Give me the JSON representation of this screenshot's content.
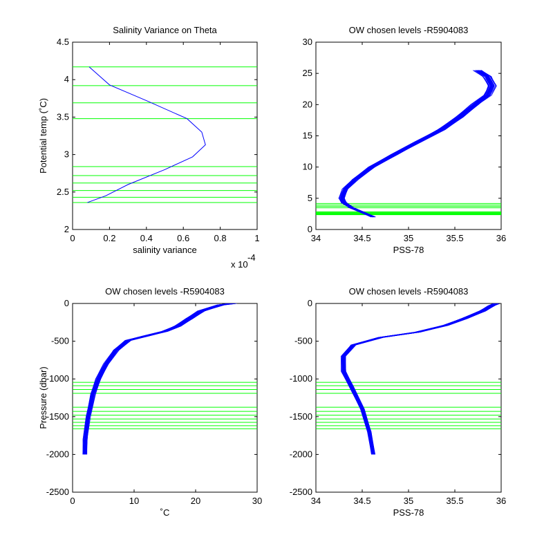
{
  "figure": {
    "background": "#ffffff",
    "line_color": "#0000ff",
    "level_color": "#00ff00"
  },
  "chart_data": [
    {
      "type": "line",
      "title": "Salinity Variance on Theta",
      "xlabel": "salinity variance",
      "ylabel": "Potential temp (˚C)",
      "x_multiplier": "x 10",
      "x_multiplier_exp": "-4",
      "xlim": [
        0,
        1
      ],
      "ylim": [
        2,
        4.5
      ],
      "xticks": [
        0,
        0.2,
        0.4,
        0.6,
        0.8,
        1
      ],
      "xtick_labels": [
        "0",
        "0.2",
        "0.4",
        "0.6",
        "0.8",
        "1"
      ],
      "yticks": [
        2,
        2.5,
        3,
        3.5,
        4,
        4.5
      ],
      "ytick_labels": [
        "2",
        "2.5",
        "3",
        "3.5",
        "4",
        "4.5"
      ],
      "grid": false,
      "series": [
        {
          "color": "#0000ff",
          "points": [
            [
              0.09,
              4.17
            ],
            [
              0.2,
              3.93
            ],
            [
              0.4,
              3.72
            ],
            [
              0.62,
              3.48
            ],
            [
              0.7,
              3.3
            ],
            [
              0.72,
              3.13
            ],
            [
              0.65,
              2.97
            ],
            [
              0.5,
              2.8
            ],
            [
              0.3,
              2.6
            ],
            [
              0.18,
              2.45
            ],
            [
              0.08,
              2.36
            ]
          ]
        }
      ],
      "levels": [
        4.17,
        3.92,
        3.69,
        3.48,
        2.84,
        2.72,
        2.62,
        2.52,
        2.43,
        2.36
      ]
    },
    {
      "type": "line",
      "title": "OW chosen levels -R5904083",
      "xlabel": "PSS-78",
      "ylabel": "",
      "xlim": [
        34,
        36
      ],
      "ylim": [
        0,
        30
      ],
      "xticks": [
        34,
        34.5,
        35,
        35.5,
        36
      ],
      "xtick_labels": [
        "34",
        "34.5",
        "35",
        "35.5",
        "36"
      ],
      "yticks": [
        0,
        5,
        10,
        15,
        20,
        25,
        30
      ],
      "ytick_labels": [
        "0",
        "5",
        "10",
        "15",
        "20",
        "25",
        "30"
      ],
      "grid": false,
      "series": [
        {
          "color": "#0000ff",
          "points": [
            [
              34.62,
              2
            ],
            [
              34.5,
              2.8
            ],
            [
              34.38,
              3.5
            ],
            [
              34.3,
              4.3
            ],
            [
              34.28,
              5
            ],
            [
              34.32,
              6.5
            ],
            [
              34.42,
              8
            ],
            [
              34.6,
              10
            ],
            [
              34.85,
              12
            ],
            [
              35.1,
              14
            ],
            [
              35.35,
              16
            ],
            [
              35.55,
              18
            ],
            [
              35.72,
              20
            ],
            [
              35.85,
              21.5
            ],
            [
              35.9,
              23
            ],
            [
              35.85,
              24.5
            ],
            [
              35.75,
              25.5
            ]
          ]
        }
      ],
      "band": {
        "spread": 0.045,
        "count": 26
      },
      "levels": [
        4.17,
        3.92,
        3.69,
        3.48,
        2.84,
        2.72,
        2.62,
        2.52,
        2.43,
        2.36
      ]
    },
    {
      "type": "line",
      "title": "OW chosen levels -R5904083",
      "xlabel": "˚C",
      "ylabel": "Pressure (dbar)",
      "xlim": [
        0,
        30
      ],
      "ylim": [
        -2500,
        0
      ],
      "xticks": [
        0,
        10,
        20,
        30
      ],
      "xtick_labels": [
        "0",
        "10",
        "20",
        "30"
      ],
      "yticks": [
        -2500,
        -2000,
        -1500,
        -1000,
        -500,
        0
      ],
      "ytick_labels": [
        "-2500",
        "-2000",
        "-1500",
        "-1000",
        "-500",
        "0"
      ],
      "grid": false,
      "series": [
        {
          "color": "#0000ff",
          "points": [
            [
              2,
              -2000
            ],
            [
              2.1,
              -1800
            ],
            [
              2.5,
              -1500
            ],
            [
              3.3,
              -1200
            ],
            [
              4.2,
              -1000
            ],
            [
              5.5,
              -800
            ],
            [
              7,
              -620
            ],
            [
              9,
              -490
            ],
            [
              12,
              -430
            ],
            [
              15,
              -370
            ],
            [
              17,
              -300
            ],
            [
              19,
              -200
            ],
            [
              21,
              -100
            ],
            [
              24,
              -20
            ],
            [
              26,
              0
            ]
          ]
        }
      ],
      "band": {
        "spread": 0.6,
        "count": 26
      },
      "levels": [
        -1045,
        -1090,
        -1140,
        -1190,
        -1375,
        -1430,
        -1480,
        -1530,
        -1575,
        -1620,
        -1660
      ]
    },
    {
      "type": "line",
      "title": "OW chosen levels -R5904083",
      "xlabel": "PSS-78",
      "ylabel": "",
      "xlim": [
        34,
        36
      ],
      "ylim": [
        -2500,
        0
      ],
      "xticks": [
        34,
        34.5,
        35,
        35.5,
        36
      ],
      "xtick_labels": [
        "34",
        "34.5",
        "35",
        "35.5",
        "36"
      ],
      "yticks": [
        -2500,
        -2000,
        -1500,
        -1000,
        -500,
        0
      ],
      "ytick_labels": [
        "-2500",
        "-2000",
        "-1500",
        "-1000",
        "-500",
        "0"
      ],
      "grid": false,
      "series": [
        {
          "color": "#0000ff",
          "points": [
            [
              34.62,
              -2000
            ],
            [
              34.58,
              -1700
            ],
            [
              34.5,
              -1400
            ],
            [
              34.38,
              -1100
            ],
            [
              34.3,
              -900
            ],
            [
              34.3,
              -700
            ],
            [
              34.4,
              -550
            ],
            [
              34.7,
              -450
            ],
            [
              35.1,
              -380
            ],
            [
              35.4,
              -290
            ],
            [
              35.6,
              -200
            ],
            [
              35.8,
              -100
            ],
            [
              35.9,
              -30
            ],
            [
              35.95,
              0
            ]
          ]
        }
      ],
      "band": {
        "spread": 0.035,
        "count": 26
      },
      "levels": [
        -1045,
        -1090,
        -1140,
        -1190,
        -1375,
        -1430,
        -1480,
        -1530,
        -1575,
        -1620,
        -1660
      ]
    }
  ]
}
